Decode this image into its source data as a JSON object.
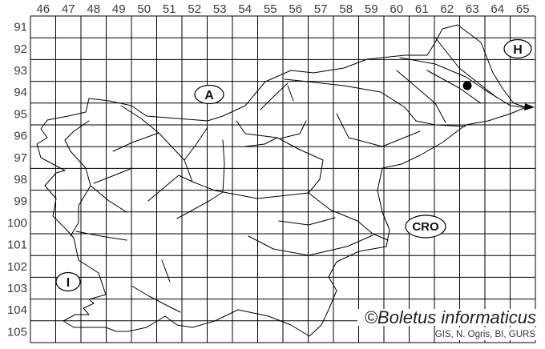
{
  "map": {
    "colors": {
      "background": "#ffffff",
      "line": "#000000",
      "label": "#3d3d3d"
    },
    "grid": {
      "col_labels": [
        "46",
        "47",
        "48",
        "49",
        "50",
        "51",
        "52",
        "53",
        "54",
        "55",
        "56",
        "57",
        "58",
        "59",
        "60",
        "61",
        "62",
        "63",
        "64",
        "65"
      ],
      "row_labels": [
        "91",
        "92",
        "93",
        "94",
        "95",
        "96",
        "97",
        "98",
        "99",
        "100",
        "101",
        "102",
        "103",
        "104",
        "105"
      ]
    },
    "country_labels": [
      {
        "id": "austria",
        "text": "A"
      },
      {
        "id": "hungary",
        "text": "H"
      },
      {
        "id": "croatia",
        "text": "CRO"
      },
      {
        "id": "italy",
        "text": "I"
      }
    ],
    "marker": {
      "symbol": "filled-dot",
      "grid_col": "63",
      "grid_row": "94"
    },
    "credits": {
      "copyright": "©Boletus informaticus",
      "attribution": "GIS, N. Ogris, BI, GURS"
    }
  }
}
